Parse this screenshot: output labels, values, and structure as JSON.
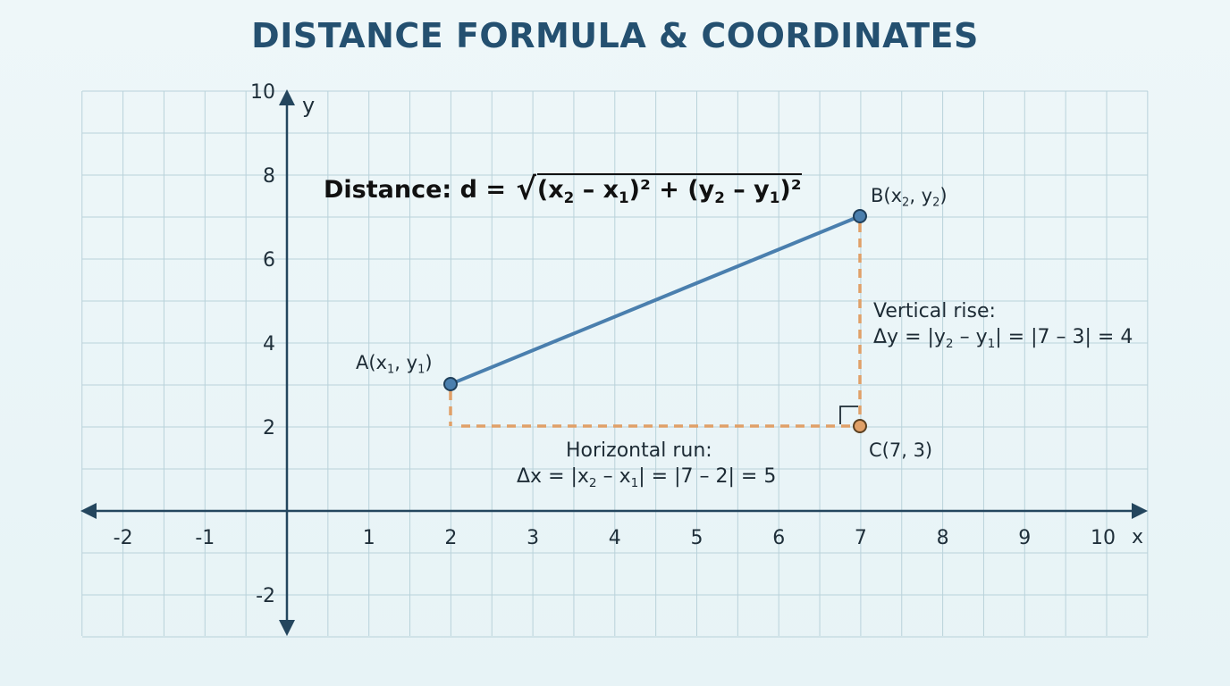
{
  "title": "DISTANCE FORMULA & COORDINATES",
  "axes": {
    "x_label": "x",
    "y_label": "y",
    "x_ticks": [
      "-2",
      "-1",
      "1",
      "2",
      "3",
      "4",
      "5",
      "6",
      "7",
      "8",
      "9",
      "10"
    ],
    "y_ticks": [
      "10",
      "8",
      "6",
      "4",
      "2",
      "-2"
    ]
  },
  "formula": {
    "prefix": "Distance: d = ",
    "radicand_html": "(x<sub>2</sub> – x<sub>1</sub>)² + (y<sub>2</sub> – y<sub>1</sub>)²"
  },
  "points": {
    "A": {
      "label_html": "A(x<sub>1</sub>, y<sub>1</sub>)",
      "color": "#4a7fae"
    },
    "B": {
      "label_html": "B(x<sub>2</sub>, y<sub>2</sub>)",
      "color": "#4a7fae"
    },
    "C": {
      "label": "C(7, 3)",
      "color": "#e0a068"
    }
  },
  "annotations": {
    "vertical_title": "Vertical rise:",
    "vertical_formula_html": "Δy = |y<sub>2</sub> – y<sub>1</sub>| = |7 – 3| = 4",
    "horizontal_title": "Horizontal run:",
    "horizontal_formula_html": "Δx = |x<sub>2</sub> – x<sub>1</sub>| = |7 – 2| = 5"
  },
  "colors": {
    "grid": "#b9d2da",
    "axis": "#24465e",
    "segment": "#4a7fae",
    "dashed": "#e0a068"
  }
}
